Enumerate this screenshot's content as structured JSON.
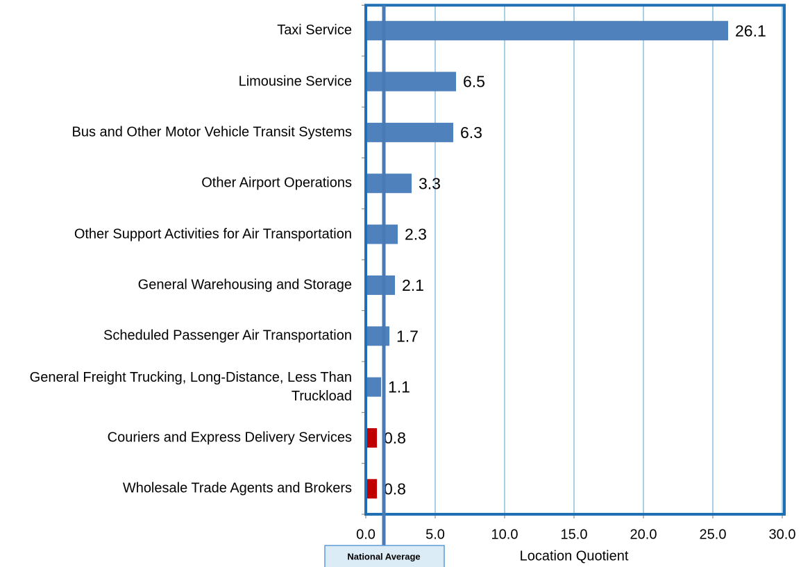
{
  "chart_data": {
    "type": "barh",
    "categories": [
      "Taxi Service",
      "Limousine Service",
      "Bus and Other Motor Vehicle Transit Systems",
      "Other Airport Operations",
      "Other Support Activities for Air Transportation",
      "General Warehousing and Storage",
      "Scheduled Passenger Air Transportation",
      "General Freight Trucking, Long-Distance, Less Than Truckload",
      "Couriers and Express Delivery Services",
      "Wholesale Trade Agents and Brokers"
    ],
    "values": [
      26.1,
      6.5,
      6.3,
      3.3,
      2.3,
      2.1,
      1.7,
      1.1,
      0.8,
      0.8
    ],
    "colors": [
      "#4f81bd",
      "#4f81bd",
      "#4f81bd",
      "#4f81bd",
      "#4f81bd",
      "#4f81bd",
      "#4f81bd",
      "#4f81bd",
      "#c00000",
      "#c00000"
    ],
    "xlabel": "Location Quotient",
    "xlim": [
      0,
      30
    ],
    "xticks": [
      {
        "value": 0,
        "label": "0.0"
      },
      {
        "value": 5,
        "label": "5.0"
      },
      {
        "value": 10,
        "label": "10.0"
      },
      {
        "value": 15,
        "label": "15.0"
      },
      {
        "value": 20,
        "label": "20.0"
      },
      {
        "value": 25,
        "label": "25.0"
      },
      {
        "value": 30,
        "label": "30.0"
      }
    ],
    "grid": true,
    "reference_line": {
      "value": 1.3,
      "label": "National Average"
    }
  }
}
